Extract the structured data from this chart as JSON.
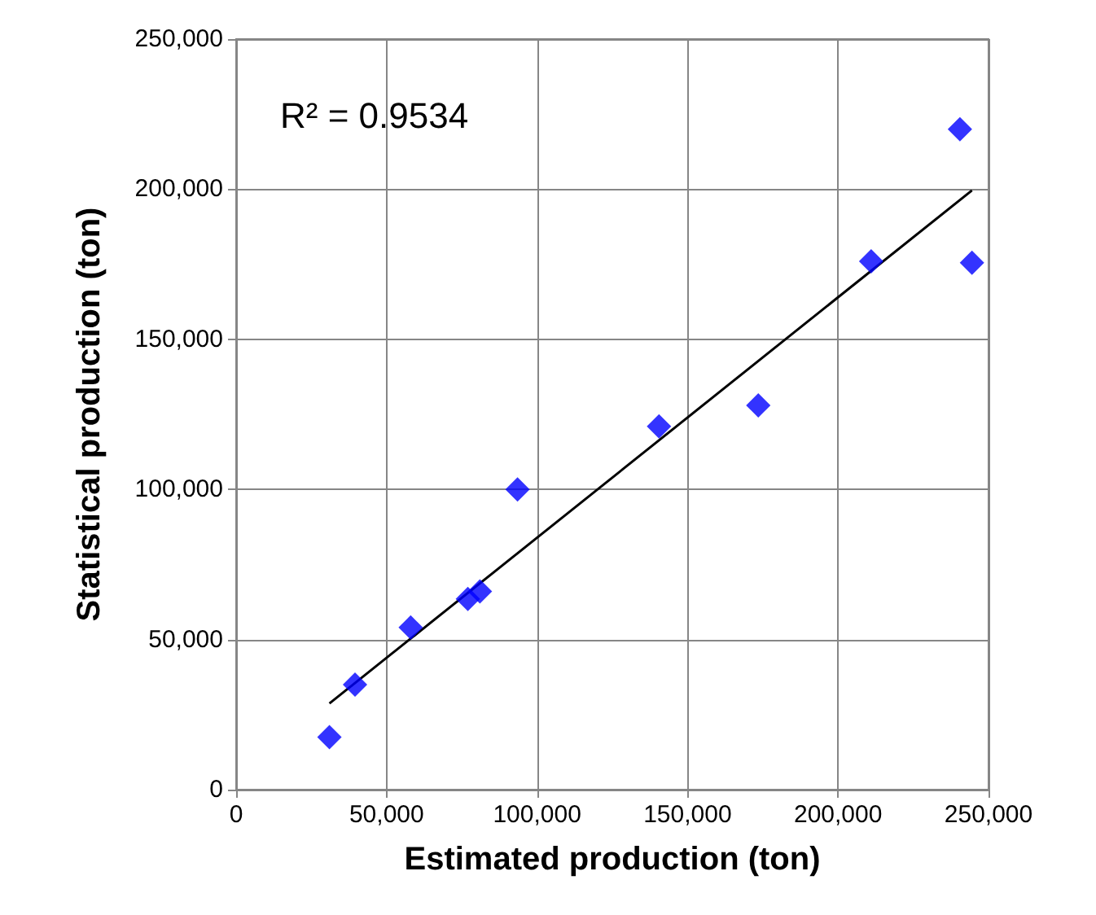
{
  "chart_data": {
    "type": "scatter",
    "xlabel": "Estimated production (ton)",
    "ylabel": "Statistical production (ton)",
    "annotations": [
      "R² = 0.9534"
    ],
    "xlim": [
      0,
      250000
    ],
    "ylim": [
      0,
      250000
    ],
    "xticks": [
      {
        "value": 0,
        "label": "0"
      },
      {
        "value": 50000,
        "label": "50,000"
      },
      {
        "value": 100000,
        "label": "100,000"
      },
      {
        "value": 150000,
        "label": "150,000"
      },
      {
        "value": 200000,
        "label": "200,000"
      },
      {
        "value": 250000,
        "label": "250,000"
      }
    ],
    "yticks": [
      {
        "value": 0,
        "label": "0"
      },
      {
        "value": 50000,
        "label": "50,000"
      },
      {
        "value": 100000,
        "label": "100,000"
      },
      {
        "value": 150000,
        "label": "150,000"
      },
      {
        "value": 200000,
        "label": "200,000"
      },
      {
        "value": 250000,
        "label": "250,000"
      }
    ],
    "grid": true,
    "series": [
      {
        "color": "#0000ff",
        "marker": "diamond",
        "x": [
          31000,
          39500,
          58000,
          77000,
          81000,
          93500,
          140500,
          173500,
          211000,
          240500,
          244500
        ],
        "values": [
          17500,
          35000,
          54000,
          63500,
          66000,
          100000,
          121000,
          128000,
          176000,
          220000,
          175500
        ]
      },
      {
        "type": "line",
        "color": "#000000",
        "marker": "none",
        "x": [
          31000,
          244500
        ],
        "values": [
          28700,
          199600
        ]
      }
    ]
  }
}
